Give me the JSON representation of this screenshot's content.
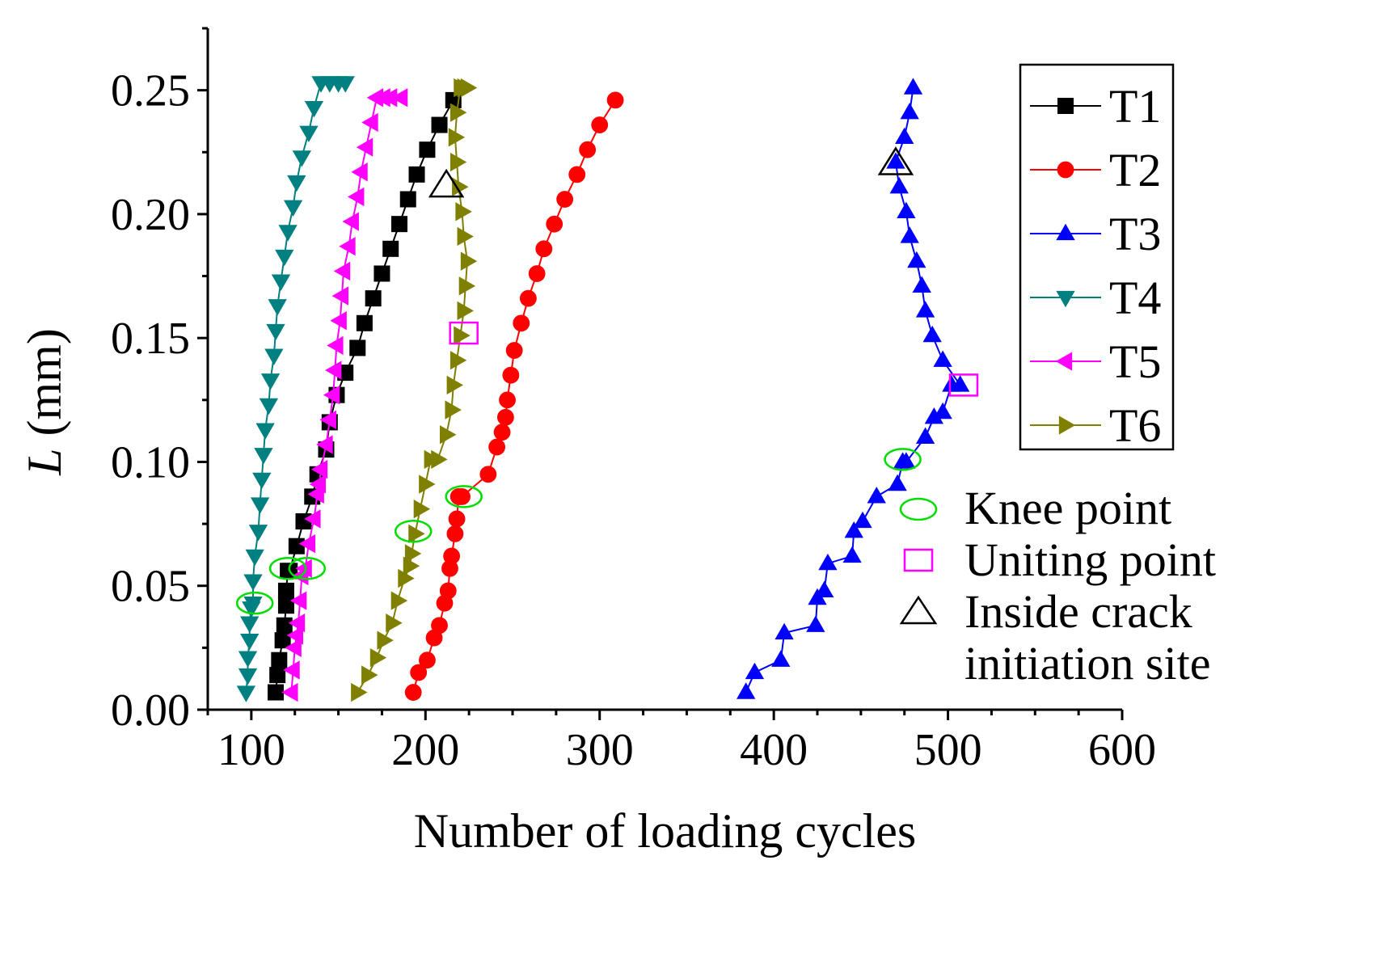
{
  "chart_data": {
    "type": "line",
    "title": "",
    "xlabel": "Number of loading cycles",
    "ylabel": {
      "symbol": "L",
      "unit": "(mm)"
    },
    "xlim": [
      75,
      600
    ],
    "ylim": [
      0,
      0.275
    ],
    "xticks": [
      {
        "value": 100,
        "label": "100"
      },
      {
        "value": 200,
        "label": "200"
      },
      {
        "value": 300,
        "label": "300"
      },
      {
        "value": 400,
        "label": "400"
      },
      {
        "value": 500,
        "label": "500"
      },
      {
        "value": 600,
        "label": "600"
      }
    ],
    "yticks": [
      {
        "value": 0,
        "label": "0.00"
      },
      {
        "value": 0.05,
        "label": "0.05"
      },
      {
        "value": 0.1,
        "label": "0.10"
      },
      {
        "value": 0.15,
        "label": "0.15"
      },
      {
        "value": 0.2,
        "label": "0.20"
      },
      {
        "value": 0.25,
        "label": "0.25"
      }
    ],
    "grid": false,
    "legend_position": "top-right",
    "series": [
      {
        "name": "T1",
        "color": "#000000",
        "marker": "square",
        "x": [
          114,
          115,
          116,
          118,
          119,
          120,
          120,
          121,
          122,
          126,
          130,
          135,
          138,
          143,
          145,
          149,
          154,
          161,
          165,
          170,
          175,
          180,
          185,
          190,
          195,
          201,
          208,
          216
        ],
        "y": [
          0.007,
          0.014,
          0.02,
          0.028,
          0.034,
          0.042,
          0.048,
          0.056,
          0.056,
          0.066,
          0.076,
          0.086,
          0.095,
          0.105,
          0.116,
          0.127,
          0.136,
          0.146,
          0.156,
          0.166,
          0.176,
          0.186,
          0.196,
          0.206,
          0.216,
          0.226,
          0.236,
          0.246
        ]
      },
      {
        "name": "T2",
        "color": "#ff0000",
        "marker": "circle",
        "x": [
          193,
          196,
          201,
          205,
          208,
          211,
          213,
          214,
          215,
          217,
          218,
          219,
          220,
          221,
          236,
          241,
          244,
          246,
          247,
          249,
          251,
          255,
          259,
          264,
          268,
          274,
          280,
          287,
          293,
          300,
          309
        ],
        "y": [
          0.007,
          0.015,
          0.02,
          0.029,
          0.034,
          0.043,
          0.048,
          0.057,
          0.062,
          0.071,
          0.077,
          0.086,
          0.086,
          0.086,
          0.095,
          0.106,
          0.112,
          0.118,
          0.125,
          0.135,
          0.145,
          0.156,
          0.166,
          0.176,
          0.186,
          0.196,
          0.206,
          0.216,
          0.226,
          0.236,
          0.246
        ]
      },
      {
        "name": "T3",
        "color": "#0000ff",
        "marker": "triangle-up",
        "x": [
          384,
          389,
          404,
          406,
          424,
          425,
          429,
          431,
          445,
          446,
          451,
          459,
          471,
          474,
          476,
          487,
          492,
          497,
          502,
          507,
          497,
          491,
          487,
          485,
          482,
          478,
          476,
          472,
          470,
          475,
          478,
          480
        ],
        "y": [
          0.007,
          0.015,
          0.02,
          0.031,
          0.034,
          0.045,
          0.048,
          0.059,
          0.062,
          0.072,
          0.076,
          0.086,
          0.091,
          0.1,
          0.1,
          0.11,
          0.118,
          0.12,
          0.131,
          0.131,
          0.141,
          0.151,
          0.161,
          0.171,
          0.181,
          0.191,
          0.201,
          0.211,
          0.221,
          0.231,
          0.241,
          0.251
        ]
      },
      {
        "name": "T4",
        "color": "#008080",
        "marker": "triangle-down",
        "x": [
          97,
          98,
          98,
          99,
          99,
          100,
          101,
          101,
          102,
          104,
          105,
          106,
          107,
          108,
          110,
          111,
          113,
          114,
          115,
          117,
          119,
          121,
          124,
          126,
          129,
          133,
          136,
          140,
          145,
          150,
          154
        ],
        "y": [
          0.007,
          0.014,
          0.021,
          0.028,
          0.035,
          0.041,
          0.043,
          0.052,
          0.062,
          0.072,
          0.083,
          0.093,
          0.103,
          0.113,
          0.123,
          0.133,
          0.143,
          0.153,
          0.163,
          0.173,
          0.183,
          0.193,
          0.203,
          0.213,
          0.223,
          0.233,
          0.243,
          0.253,
          0.253,
          0.253,
          0.253
        ]
      },
      {
        "name": "T5",
        "color": "#ff00ff",
        "marker": "triangle-left",
        "x": [
          123,
          124,
          125,
          126,
          127,
          128,
          129,
          131,
          133,
          136,
          138,
          139,
          140,
          143,
          145,
          147,
          148,
          149,
          151,
          152,
          153,
          156,
          158,
          161,
          163,
          166,
          169,
          172,
          176,
          180,
          186
        ],
        "y": [
          0.007,
          0.016,
          0.025,
          0.03,
          0.035,
          0.044,
          0.054,
          0.057,
          0.067,
          0.077,
          0.087,
          0.091,
          0.097,
          0.107,
          0.117,
          0.127,
          0.137,
          0.147,
          0.157,
          0.167,
          0.177,
          0.187,
          0.197,
          0.207,
          0.217,
          0.227,
          0.237,
          0.247,
          0.247,
          0.247,
          0.247
        ]
      },
      {
        "name": "T6",
        "color": "#808000",
        "marker": "triangle-right",
        "x": [
          161,
          167,
          172,
          176,
          181,
          184,
          188,
          191,
          192,
          194,
          197,
          200,
          203,
          207,
          212,
          215,
          216,
          218,
          220,
          222,
          223,
          224,
          222,
          221,
          219,
          218,
          217,
          218,
          220,
          222,
          224
        ],
        "y": [
          0.007,
          0.014,
          0.021,
          0.028,
          0.035,
          0.044,
          0.053,
          0.058,
          0.063,
          0.071,
          0.081,
          0.091,
          0.101,
          0.101,
          0.111,
          0.121,
          0.131,
          0.141,
          0.151,
          0.161,
          0.171,
          0.181,
          0.191,
          0.201,
          0.211,
          0.221,
          0.231,
          0.241,
          0.251,
          0.251,
          0.251
        ]
      }
    ],
    "annotations": {
      "knee_points": [
        {
          "x": 102,
          "y": 0.043
        },
        {
          "x": 121,
          "y": 0.057
        },
        {
          "x": 132,
          "y": 0.057
        },
        {
          "x": 193,
          "y": 0.072
        },
        {
          "x": 222,
          "y": 0.086
        },
        {
          "x": 474,
          "y": 0.101
        }
      ],
      "uniting_points": [
        {
          "x": 222,
          "y": 0.152
        },
        {
          "x": 509,
          "y": 0.131
        }
      ],
      "inside_crack_sites": [
        {
          "x": 212,
          "y": 0.212
        },
        {
          "x": 470,
          "y": 0.221
        }
      ]
    },
    "marker_legend": [
      {
        "shape": "ellipse",
        "color": "#00dd00",
        "label": "Knee point"
      },
      {
        "shape": "square",
        "color": "#ff00ff",
        "label": "Uniting point"
      },
      {
        "shape": "triangle",
        "color": "#000000",
        "label": [
          "Inside crack",
          "initiation site"
        ]
      }
    ]
  }
}
